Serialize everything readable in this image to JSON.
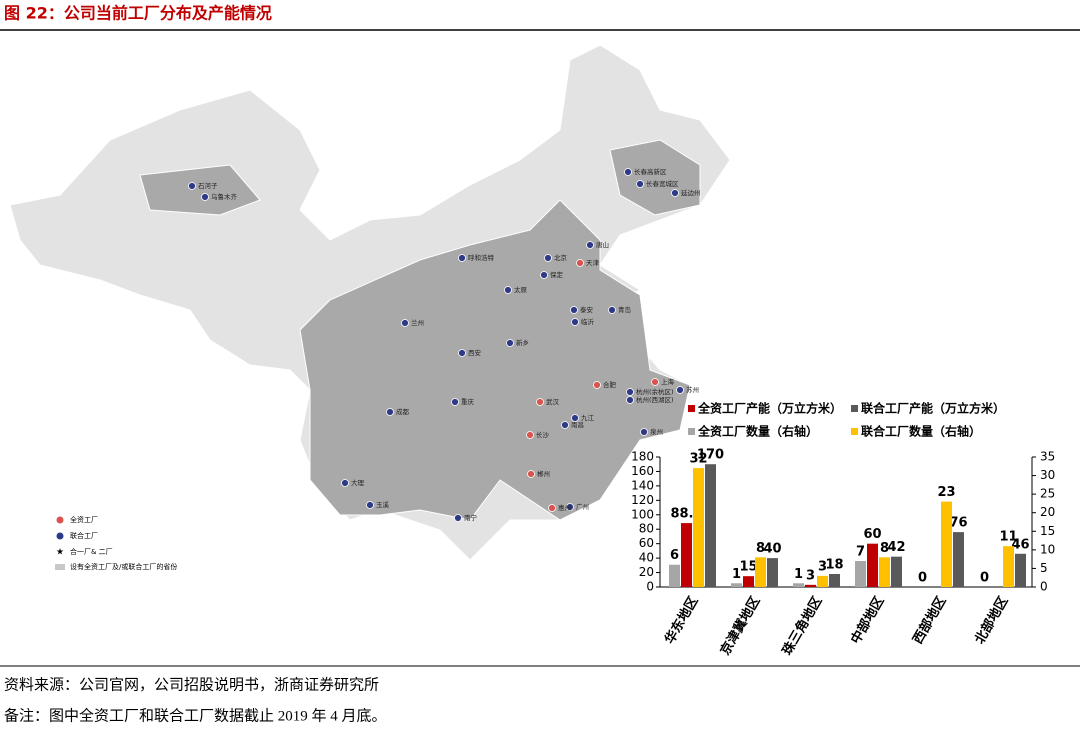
{
  "header": {
    "title": "图 22：公司当前工厂分布及产能情况"
  },
  "map": {
    "factories": [
      {
        "name": "石河子",
        "owned": false
      },
      {
        "name": "乌鲁木齐",
        "owned": false
      },
      {
        "name": "呼和浩特",
        "owned": false
      },
      {
        "name": "兰州",
        "owned": false
      },
      {
        "name": "西安",
        "owned": false
      },
      {
        "name": "太原",
        "owned": false
      },
      {
        "name": "北京",
        "owned": false
      },
      {
        "name": "天津",
        "owned": true
      },
      {
        "name": "唐山",
        "owned": false
      },
      {
        "name": "保定",
        "owned": false
      },
      {
        "name": "长春高新区",
        "owned": false
      },
      {
        "name": "长春宽城区",
        "owned": false
      },
      {
        "name": "延边州",
        "owned": false
      },
      {
        "name": "青岛",
        "owned": false
      },
      {
        "name": "新乡",
        "owned": false
      },
      {
        "name": "武汉",
        "owned": true
      },
      {
        "name": "合肥",
        "owned": true
      },
      {
        "name": "上海",
        "owned": true
      },
      {
        "name": "苏州",
        "owned": false
      },
      {
        "name": "杭州(余杭区)",
        "owned": false
      },
      {
        "name": "杭州(西湖区)",
        "owned": false
      },
      {
        "name": "长沙",
        "owned": true
      },
      {
        "name": "成都",
        "owned": false
      },
      {
        "name": "重庆",
        "owned": false
      },
      {
        "name": "大理",
        "owned": false
      },
      {
        "name": "南宁",
        "owned": false
      },
      {
        "name": "广州",
        "owned": false
      },
      {
        "name": "惠州",
        "owned": true
      },
      {
        "name": "郴州",
        "owned": true
      },
      {
        "name": "南昌",
        "owned": false
      },
      {
        "name": "九江",
        "owned": false
      },
      {
        "name": "临沂",
        "owned": false
      },
      {
        "name": "泰安",
        "owned": false
      },
      {
        "name": "泉州",
        "owned": false
      },
      {
        "name": "玉溪",
        "owned": false
      }
    ],
    "legend": [
      "全资工厂",
      "联合工厂",
      "合一厂& 二厂",
      "设有全资工厂及/或联合工厂的省份"
    ]
  },
  "chart_data": {
    "type": "bar",
    "categories": [
      "华东地区",
      "京津冀地区",
      "珠三角地区",
      "中部地区",
      "西部地区",
      "北部地区"
    ],
    "series": [
      {
        "name": "全资工厂产能（万立方米）",
        "color": "#c00000",
        "values": [
          88.5,
          15,
          3,
          60,
          null,
          null
        ]
      },
      {
        "name": "联合工厂产能（万立方米）",
        "color": "#595959",
        "values": [
          170,
          40,
          18,
          42,
          76,
          46
        ]
      },
      {
        "name": "全资工厂数量（右轴）",
        "color": "#a6a6a6",
        "values": [
          6,
          1,
          1,
          7,
          0,
          0
        ],
        "axis": "y2"
      },
      {
        "name": "联合工厂数量（右轴）",
        "color": "#ffc000",
        "values": [
          32,
          8,
          3,
          8,
          23,
          11
        ],
        "axis": "y2"
      }
    ],
    "ylim": [
      0,
      180
    ],
    "yticks": [
      0,
      20,
      40,
      60,
      80,
      100,
      120,
      140,
      160,
      180
    ],
    "y2lim": [
      0,
      35
    ],
    "y2ticks": [
      0,
      5,
      10,
      15,
      20,
      25,
      30,
      35
    ]
  },
  "footer": {
    "source": "资料来源：公司官网，公司招股说明书，浙商证券研究所",
    "note": "备注：图中全资工厂和联合工厂数据截止 2019 年 4 月底。"
  }
}
